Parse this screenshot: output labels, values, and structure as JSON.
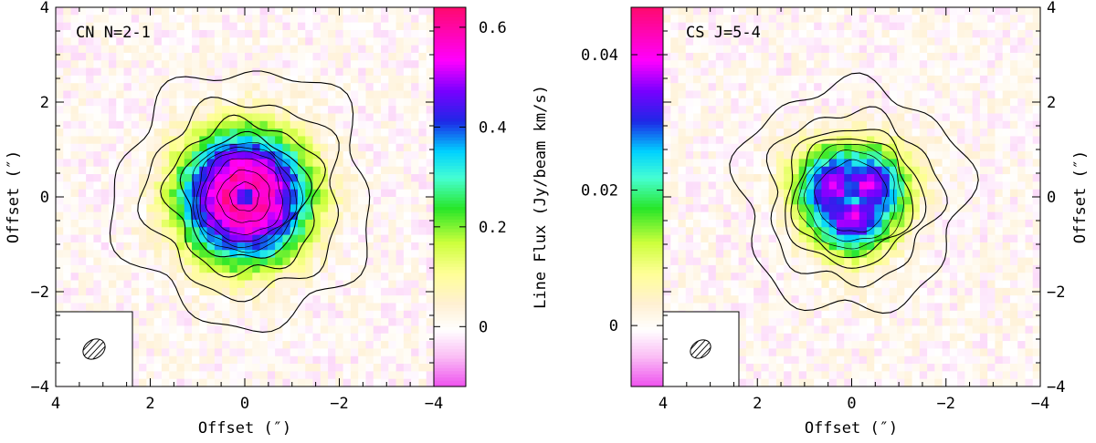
{
  "chart_data": [
    {
      "type": "heatmap",
      "title": "CN N=2-1",
      "xlabel": "Offset (″)",
      "ylabel": "Offset (″)",
      "xlim": [
        4,
        -4
      ],
      "ylim": [
        -4,
        4
      ],
      "x_ticks": [
        4,
        2,
        0,
        -2,
        -4
      ],
      "y_ticks": [
        -4,
        -2,
        0,
        2,
        4
      ],
      "x_tick_labels": [
        "4",
        "2",
        "0",
        "−2",
        "−4"
      ],
      "y_tick_labels": [
        "−4",
        "−2",
        "0",
        "2",
        "4"
      ],
      "colorbar": {
        "range": [
          -0.12,
          0.64
        ],
        "ticks": [
          0,
          0.2,
          0.4,
          0.6
        ],
        "tick_labels": [
          "0",
          "0.2",
          "0.4",
          "0.6"
        ],
        "label": "Line Flux (Jy/beam km/s)"
      },
      "source": {
        "peak": 0.62,
        "ring_radius": 0.45,
        "central_dip": 0.4,
        "sigma": 1.25
      },
      "contour_radii": [
        0.3,
        0.55,
        0.8,
        0.95,
        1.05,
        1.15,
        1.3,
        1.6,
        2.05,
        2.7
      ],
      "beam": {
        "major": 0.55,
        "minor": 0.42,
        "pa_deg": 35
      }
    },
    {
      "type": "heatmap",
      "title": "CS J=5-4",
      "xlabel": "Offset (″)",
      "ylabel": "Offset (″)",
      "xlim": [
        4,
        -4
      ],
      "ylim": [
        -4,
        4
      ],
      "x_ticks": [
        4,
        2,
        0,
        -2,
        -4
      ],
      "y_ticks": [
        -4,
        -2,
        0,
        2,
        4
      ],
      "x_tick_labels": [
        "4",
        "2",
        "0",
        "−2",
        "−4"
      ],
      "y_tick_labels": [
        "−4",
        "−2",
        "0",
        "2",
        "4"
      ],
      "colorbar": {
        "range": [
          -0.009,
          0.047
        ],
        "ticks": [
          0,
          0.02,
          0.04
        ],
        "tick_labels": [
          "0",
          "0.02",
          "0.04"
        ],
        "label": "Line Flux (Jy/beam km/s)"
      },
      "source": {
        "peak": 0.04,
        "ring_radius": 0.7,
        "central_dip": 0.027,
        "sigma": 1.0
      },
      "contour_radii": [
        0.75,
        0.95,
        1.1,
        1.25,
        1.45,
        1.8,
        2.4
      ],
      "beam": {
        "major": 0.45,
        "minor": 0.32,
        "pa_deg": 35
      }
    }
  ]
}
